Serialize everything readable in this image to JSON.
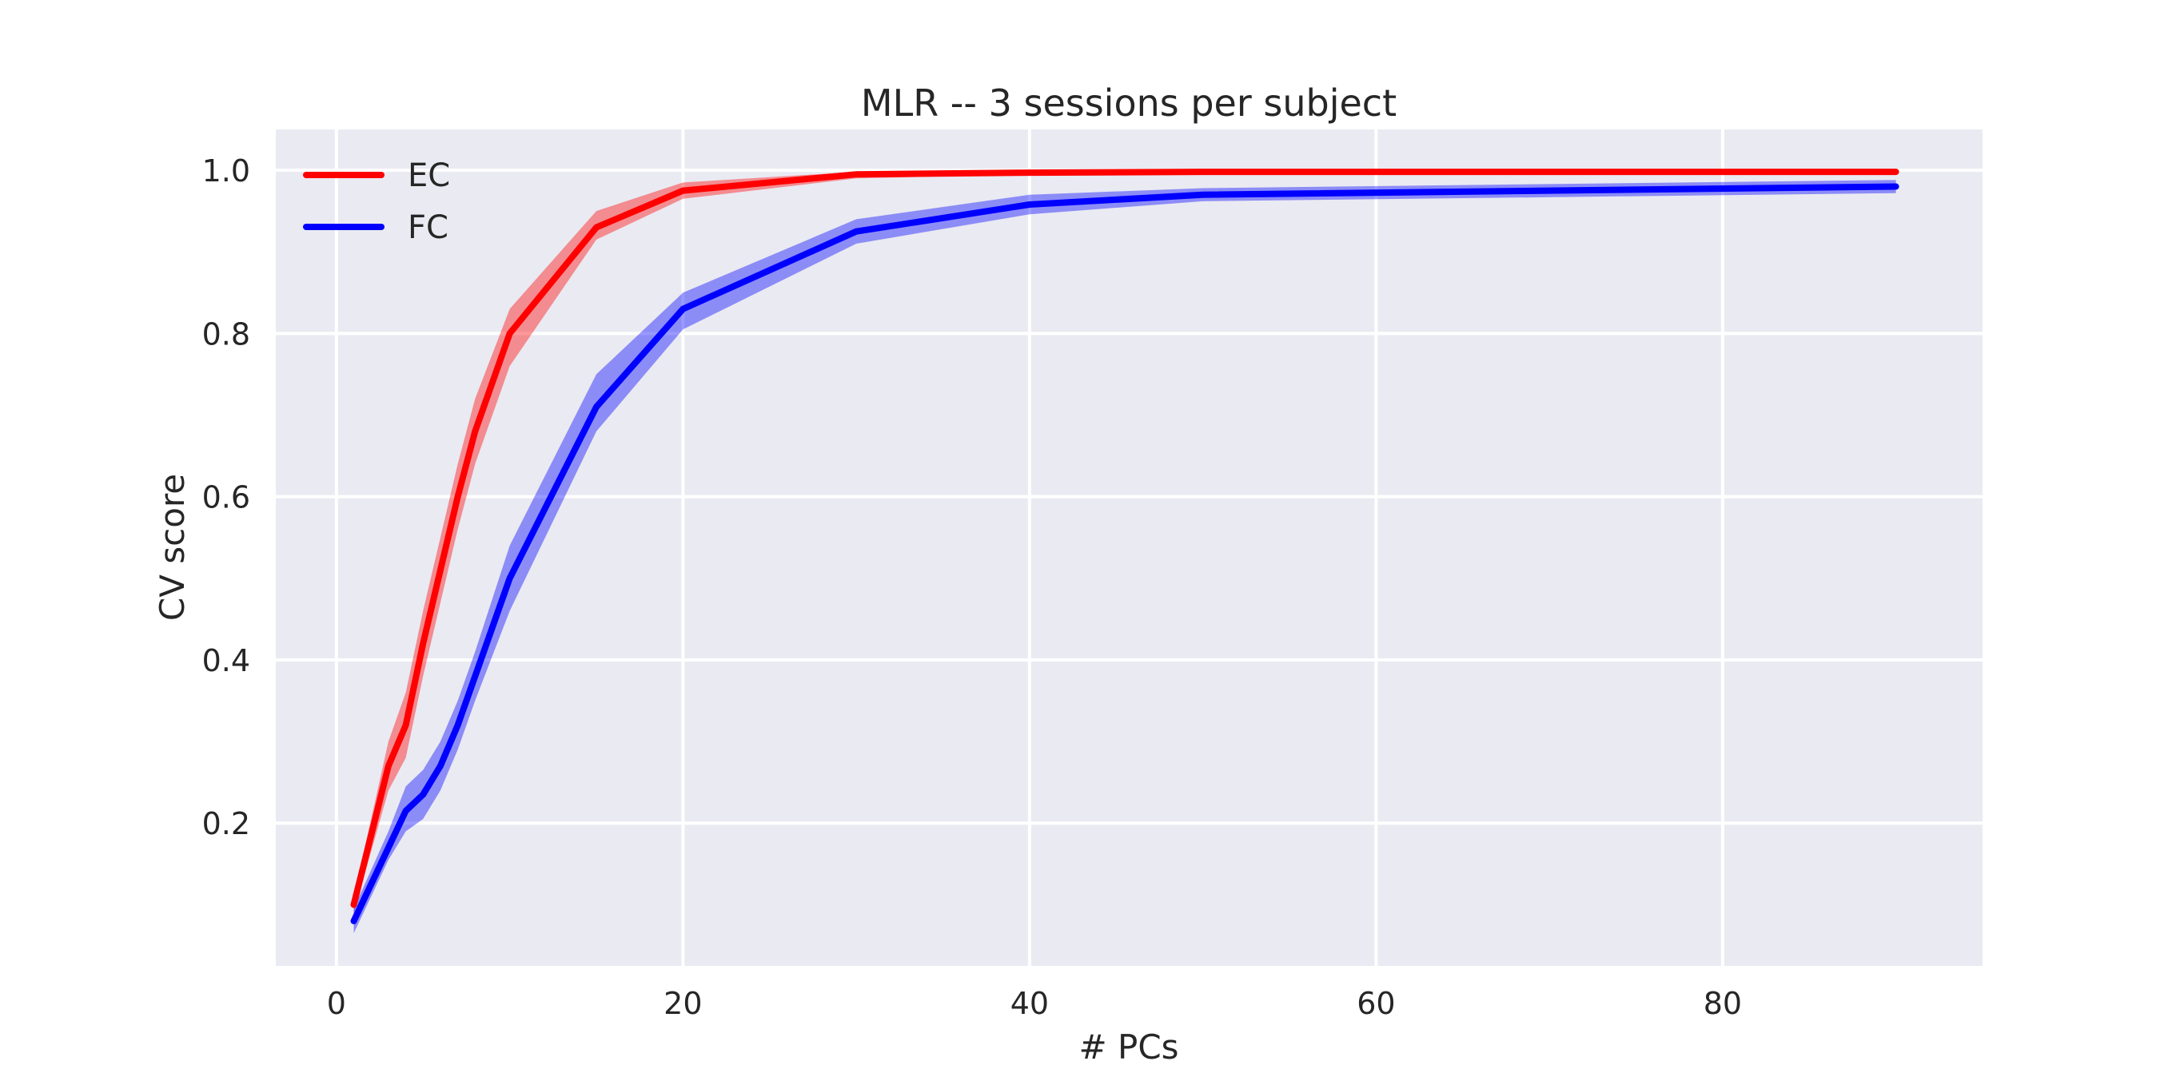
{
  "chart_data": {
    "type": "line",
    "title": "MLR -- 3 sessions per subject",
    "xlabel": "# PCs",
    "ylabel": "CV score",
    "xlim": [
      -3.5,
      95
    ],
    "ylim": [
      0.025,
      1.05
    ],
    "xticks": [
      0,
      20,
      40,
      60,
      80
    ],
    "yticks": [
      0.2,
      0.4,
      0.6,
      0.8,
      1.0
    ],
    "grid": true,
    "legend_position": "top-left",
    "x": [
      1,
      3,
      4,
      5,
      6,
      7,
      8,
      10,
      15,
      20,
      30,
      40,
      50,
      90
    ],
    "series": [
      {
        "name": "EC",
        "color": "#ff0000",
        "values": [
          0.1,
          0.27,
          0.32,
          0.42,
          0.51,
          0.6,
          0.68,
          0.8,
          0.93,
          0.975,
          0.995,
          0.997,
          0.998,
          0.998
        ],
        "lower": [
          0.09,
          0.24,
          0.28,
          0.38,
          0.47,
          0.56,
          0.64,
          0.76,
          0.915,
          0.965,
          0.99,
          0.995,
          0.997,
          0.997
        ],
        "upper": [
          0.11,
          0.3,
          0.36,
          0.46,
          0.55,
          0.64,
          0.72,
          0.83,
          0.95,
          0.985,
          0.998,
          0.999,
          0.999,
          0.999
        ]
      },
      {
        "name": "FC",
        "color": "#0000ff",
        "values": [
          0.08,
          0.17,
          0.215,
          0.235,
          0.27,
          0.32,
          0.38,
          0.5,
          0.71,
          0.83,
          0.925,
          0.958,
          0.97,
          0.98
        ],
        "lower": [
          0.065,
          0.155,
          0.19,
          0.205,
          0.24,
          0.29,
          0.35,
          0.46,
          0.68,
          0.805,
          0.91,
          0.946,
          0.962,
          0.972
        ],
        "upper": [
          0.095,
          0.19,
          0.245,
          0.265,
          0.3,
          0.35,
          0.41,
          0.54,
          0.75,
          0.85,
          0.94,
          0.97,
          0.978,
          0.988
        ]
      }
    ]
  }
}
